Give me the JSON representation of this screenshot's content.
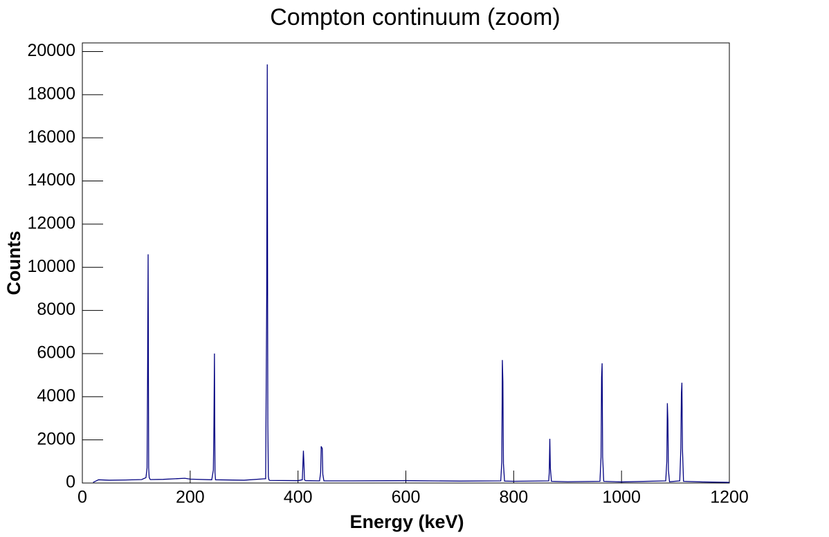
{
  "chart_data": {
    "type": "line",
    "title": "Compton continuum (zoom)",
    "x_label": "Energy (keV)",
    "y_label": "Counts",
    "color": "#000080",
    "x": [
      20,
      30,
      50,
      80,
      110,
      118,
      120,
      121,
      122,
      123,
      124,
      126,
      150,
      190,
      200,
      240,
      243,
      244,
      245,
      246,
      247,
      300,
      340,
      342,
      343,
      344,
      345,
      346,
      348,
      400,
      408,
      410,
      411,
      412,
      414,
      440,
      442,
      443,
      445,
      446,
      448,
      500,
      600,
      700,
      776,
      778,
      779,
      780,
      781,
      783,
      800,
      865,
      866,
      867,
      868,
      870,
      900,
      960,
      962,
      963,
      964,
      965,
      967,
      1000,
      1082,
      1084,
      1085,
      1086,
      1087,
      1089,
      1108,
      1110,
      1111,
      1112,
      1113,
      1115,
      1150,
      1200
    ],
    "values": [
      30,
      150,
      130,
      140,
      160,
      250,
      700,
      5000,
      10600,
      700,
      250,
      160,
      170,
      220,
      180,
      150,
      600,
      2600,
      6000,
      500,
      150,
      130,
      200,
      8900,
      19400,
      2700,
      300,
      150,
      120,
      110,
      150,
      1500,
      900,
      150,
      110,
      100,
      500,
      1700,
      1600,
      400,
      100,
      100,
      110,
      90,
      100,
      1000,
      5700,
      4700,
      900,
      90,
      80,
      100,
      500,
      2050,
      700,
      80,
      60,
      80,
      1200,
      4900,
      5550,
      1200,
      80,
      50,
      100,
      1000,
      3700,
      2900,
      600,
      60,
      100,
      1600,
      4100,
      4650,
      1600,
      80,
      50,
      30
    ],
    "xlim": [
      0,
      1200
    ],
    "xticks": [
      0,
      200,
      400,
      600,
      800,
      1000,
      1200
    ],
    "ylim": [
      0,
      20400
    ],
    "yticks": [
      0,
      2000,
      4000,
      6000,
      8000,
      10000,
      12000,
      14000,
      16000,
      18000,
      20000
    ]
  }
}
